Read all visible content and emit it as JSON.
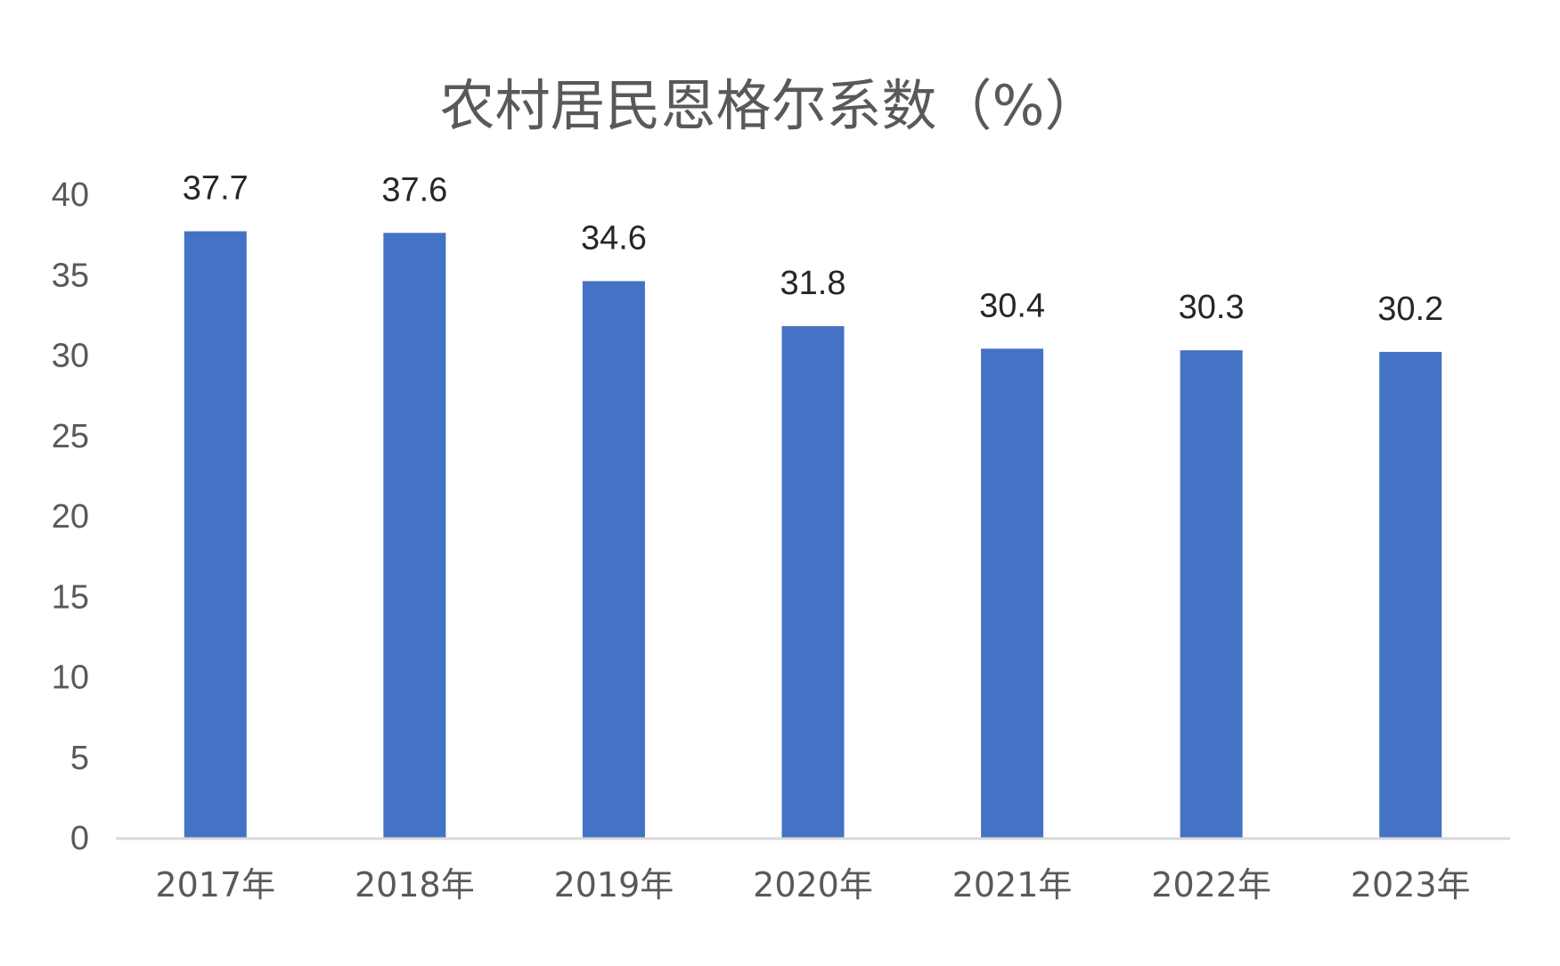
{
  "chart_data": {
    "type": "bar",
    "title": "农村居民恩格尔系数（%）",
    "xlabel": "",
    "ylabel": "",
    "categories": [
      "2017年",
      "2018年",
      "2019年",
      "2020年",
      "2021年",
      "2022年",
      "2023年"
    ],
    "values": [
      37.7,
      37.6,
      34.6,
      31.8,
      30.4,
      30.3,
      30.2
    ],
    "data_labels": [
      "37.7",
      "37.6",
      "34.6",
      "31.8",
      "30.4",
      "30.3",
      "30.2"
    ],
    "ylim": [
      0,
      40
    ],
    "y_ticks": [
      "0",
      "5",
      "10",
      "15",
      "20",
      "25",
      "30",
      "35",
      "40"
    ],
    "grid": false,
    "legend": "none",
    "colors": {
      "bar": "#4472C4",
      "axis_line": "#D9D9D9",
      "label_text": "#595959",
      "value_text": "#262626"
    }
  }
}
